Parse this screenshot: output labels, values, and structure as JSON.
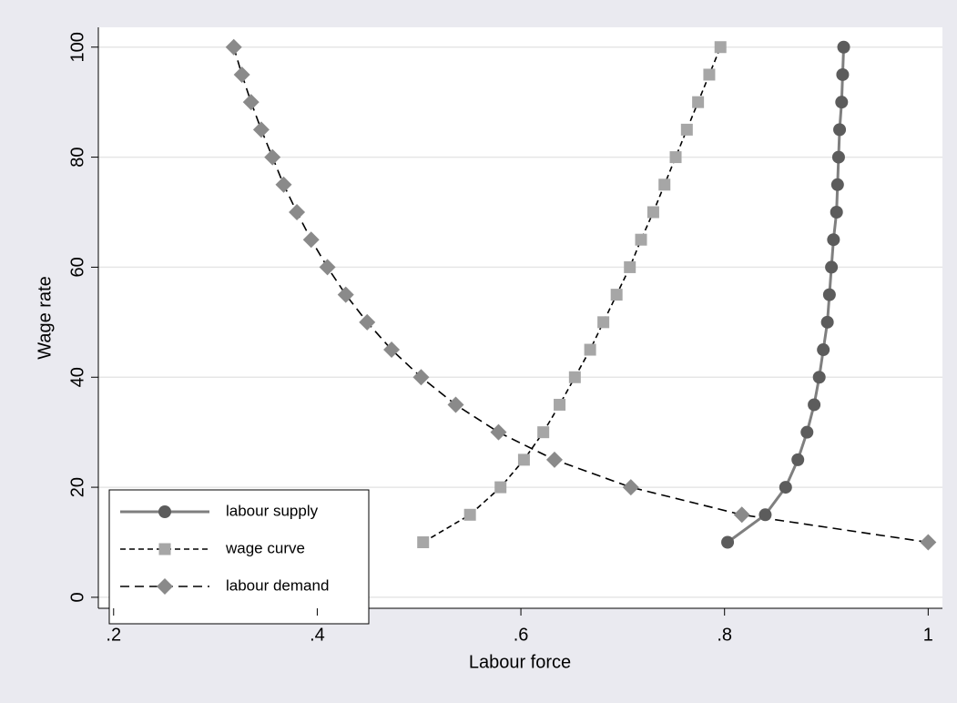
{
  "chart_data": {
    "type": "line",
    "x_label": "Labour force",
    "y_label": "Wage rate",
    "xlim": [
      0.185,
      1.014
    ],
    "ylim": [
      -2,
      103.6
    ],
    "xticks": [
      {
        "value": 0.2,
        "label": ".2"
      },
      {
        "value": 0.4,
        "label": ".4"
      },
      {
        "value": 0.6,
        "label": ".6"
      },
      {
        "value": 0.8,
        "label": ".8"
      },
      1
    ],
    "yticks": [
      0,
      20,
      40,
      60,
      80,
      100
    ],
    "grid": true,
    "legend_position": "lower left",
    "series": [
      {
        "name": "labour supply",
        "color": "#5c5c5c",
        "line_color": "#7f7f7f",
        "line_style": "solid",
        "marker": "circle",
        "x": [
          0.803,
          0.84,
          0.86,
          0.872,
          0.881,
          0.888,
          0.893,
          0.897,
          0.901,
          0.903,
          0.905,
          0.907,
          0.91,
          0.911,
          0.912,
          0.913,
          0.915,
          0.916,
          0.917
        ],
        "values": [
          10,
          15,
          20,
          25,
          30,
          35,
          40,
          45,
          50,
          55,
          60,
          65,
          70,
          75,
          80,
          85,
          90,
          95,
          100
        ]
      },
      {
        "name": "wage curve",
        "color": "#a6a6a6",
        "line_color": "#000000",
        "line_style": "short-dash",
        "marker": "square",
        "x": [
          0.504,
          0.55,
          0.58,
          0.603,
          0.622,
          0.638,
          0.653,
          0.668,
          0.681,
          0.694,
          0.707,
          0.718,
          0.73,
          0.741,
          0.752,
          0.763,
          0.774,
          0.785,
          0.796
        ],
        "values": [
          10,
          15,
          20,
          25,
          30,
          35,
          40,
          45,
          50,
          55,
          60,
          65,
          70,
          75,
          80,
          85,
          90,
          95,
          100
        ]
      },
      {
        "name": "labour demand",
        "color": "#8a8a8a",
        "line_color": "#000000",
        "line_style": "long-dash",
        "marker": "diamond",
        "x": [
          1.0,
          0.817,
          0.708,
          0.633,
          0.578,
          0.536,
          0.502,
          0.473,
          0.449,
          0.428,
          0.41,
          0.394,
          0.38,
          0.367,
          0.356,
          0.345,
          0.335,
          0.326,
          0.318
        ],
        "values": [
          10,
          15,
          20,
          25,
          30,
          35,
          40,
          45,
          50,
          55,
          60,
          65,
          70,
          75,
          80,
          85,
          90,
          95,
          100
        ]
      }
    ]
  }
}
